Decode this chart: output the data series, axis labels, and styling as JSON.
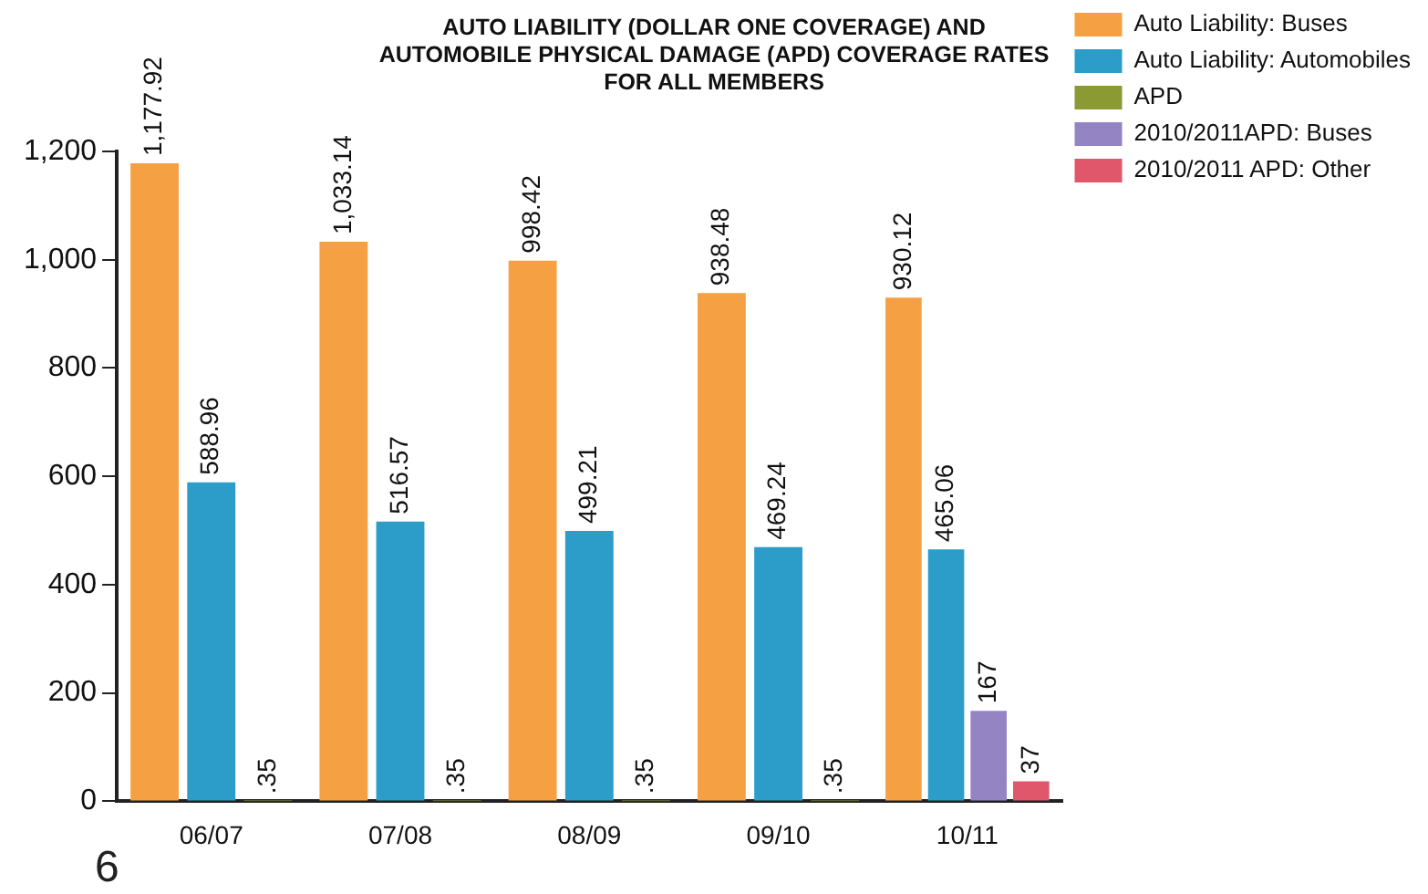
{
  "chart_data": {
    "type": "bar",
    "title": "AUTO LIABILITY (DOLLAR ONE COVERAGE) AND\nAUTOMOBILE PHYSICAL DAMAGE (APD) COVERAGE RATES\nFOR ALL MEMBERS",
    "categories": [
      "06/07",
      "07/08",
      "08/09",
      "09/10",
      "10/11"
    ],
    "series": [
      {
        "name": "Auto Liability: Buses",
        "color": "#f5a043",
        "values": [
          1177.92,
          1033.14,
          998.42,
          938.48,
          930.12
        ],
        "value_labels": [
          "1,177.92",
          "1,033.14",
          "998.42",
          "938.48",
          "930.12"
        ]
      },
      {
        "name": "Auto Liability: Automobiles",
        "color": "#2b9dc8",
        "values": [
          588.96,
          516.57,
          499.21,
          469.24,
          465.06
        ],
        "value_labels": [
          "588.96",
          "516.57",
          "499.21",
          "469.24",
          "465.06"
        ]
      },
      {
        "name": "APD",
        "color": "#8c9a34",
        "values": [
          0.35,
          0.35,
          0.35,
          0.35,
          null
        ],
        "value_labels": [
          ".35",
          ".35",
          ".35",
          ".35",
          null
        ]
      },
      {
        "name": "2010/2011APD: Buses",
        "color": "#9484c4",
        "values": [
          null,
          null,
          null,
          null,
          167
        ],
        "value_labels": [
          null,
          null,
          null,
          null,
          "167"
        ]
      },
      {
        "name": "2010/2011 APD: Other",
        "color": "#e0566a",
        "values": [
          null,
          null,
          null,
          null,
          37
        ],
        "value_labels": [
          null,
          null,
          null,
          null,
          "37"
        ]
      }
    ],
    "ylim": [
      0,
      1200
    ],
    "yticks": [
      0,
      200,
      400,
      600,
      800,
      {
        "value": 1000,
        "label": "1,000"
      },
      {
        "value": 1200,
        "label": "1,200"
      }
    ],
    "grid": false,
    "legend": "top right",
    "annotations": [
      "6"
    ]
  }
}
